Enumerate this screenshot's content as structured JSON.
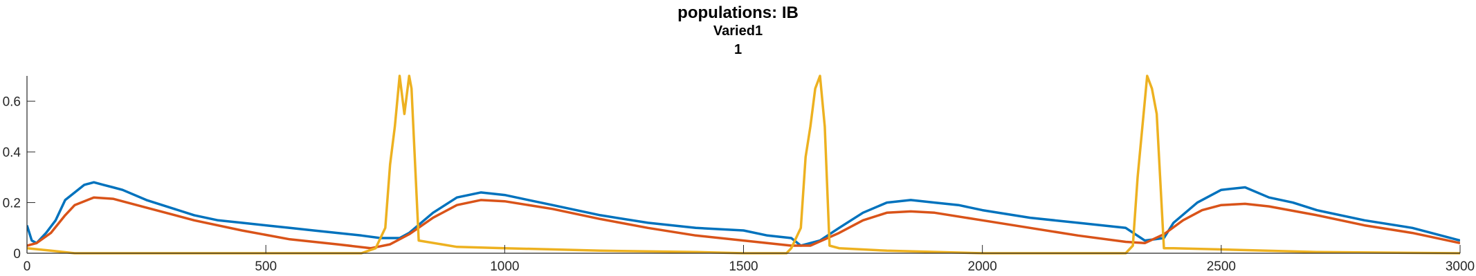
{
  "titles": {
    "line1": "populations: IB",
    "line2": "Varied1",
    "line3": "1"
  },
  "chart_data": {
    "type": "line",
    "title": "populations: IB",
    "subtitle": [
      "Varied1",
      "1"
    ],
    "xlabel": "",
    "ylabel": "",
    "xlim": [
      0,
      3000
    ],
    "ylim": [
      0,
      0.7
    ],
    "grid": false,
    "x_ticks": [
      0,
      500,
      1000,
      1500,
      2000,
      2500,
      3000
    ],
    "x_tick_labels": [
      "0",
      "500",
      "1000",
      "1500",
      "2000",
      "2500",
      "3000"
    ],
    "y_ticks": [
      0,
      0.2,
      0.4,
      0.6
    ],
    "y_tick_labels": [
      "0",
      "0.2",
      "0.4",
      "0.6"
    ],
    "series": [
      {
        "color": "#0072BD",
        "x": [
          0,
          10,
          20,
          40,
          60,
          80,
          100,
          120,
          140,
          160,
          180,
          200,
          250,
          300,
          350,
          400,
          450,
          500,
          550,
          600,
          650,
          700,
          740,
          780,
          800,
          850,
          900,
          950,
          1000,
          1050,
          1100,
          1150,
          1200,
          1300,
          1400,
          1500,
          1550,
          1600,
          1620,
          1660,
          1700,
          1750,
          1800,
          1850,
          1900,
          1950,
          2000,
          2100,
          2200,
          2300,
          2340,
          2380,
          2400,
          2450,
          2500,
          2550,
          2600,
          2650,
          2700,
          2800,
          2900,
          3000
        ],
        "y": [
          0.11,
          0.05,
          0.04,
          0.08,
          0.13,
          0.21,
          0.24,
          0.27,
          0.28,
          0.27,
          0.26,
          0.25,
          0.21,
          0.18,
          0.15,
          0.13,
          0.12,
          0.11,
          0.1,
          0.09,
          0.08,
          0.07,
          0.06,
          0.06,
          0.08,
          0.16,
          0.22,
          0.24,
          0.23,
          0.21,
          0.19,
          0.17,
          0.15,
          0.12,
          0.1,
          0.09,
          0.07,
          0.06,
          0.03,
          0.05,
          0.1,
          0.16,
          0.2,
          0.21,
          0.2,
          0.19,
          0.17,
          0.14,
          0.12,
          0.1,
          0.05,
          0.06,
          0.12,
          0.2,
          0.25,
          0.26,
          0.22,
          0.2,
          0.17,
          0.13,
          0.1,
          0.05
        ]
      },
      {
        "color": "#D95319",
        "x": [
          0,
          20,
          50,
          80,
          100,
          140,
          180,
          250,
          350,
          450,
          550,
          650,
          720,
          760,
          800,
          850,
          900,
          950,
          1000,
          1100,
          1200,
          1300,
          1400,
          1500,
          1600,
          1640,
          1700,
          1750,
          1800,
          1850,
          1900,
          2000,
          2100,
          2200,
          2300,
          2340,
          2380,
          2420,
          2460,
          2500,
          2550,
          2600,
          2700,
          2800,
          2900,
          3000
        ],
        "y": [
          0.03,
          0.04,
          0.08,
          0.15,
          0.19,
          0.22,
          0.215,
          0.18,
          0.13,
          0.09,
          0.055,
          0.035,
          0.02,
          0.035,
          0.075,
          0.14,
          0.19,
          0.21,
          0.205,
          0.175,
          0.135,
          0.1,
          0.07,
          0.05,
          0.03,
          0.03,
          0.08,
          0.13,
          0.16,
          0.165,
          0.16,
          0.13,
          0.1,
          0.07,
          0.045,
          0.04,
          0.075,
          0.13,
          0.17,
          0.19,
          0.195,
          0.185,
          0.15,
          0.11,
          0.08,
          0.04
        ]
      },
      {
        "color": "#EDB120",
        "x": [
          0,
          50,
          100,
          650,
          700,
          730,
          750,
          760,
          770,
          780,
          790,
          800,
          805,
          820,
          900,
          1000,
          1200,
          1400,
          1500,
          1550,
          1590,
          1600,
          1620,
          1630,
          1640,
          1650,
          1660,
          1670,
          1680,
          1700,
          1800,
          2000,
          2200,
          2300,
          2315,
          2325,
          2335,
          2345,
          2355,
          2365,
          2380,
          2400,
          2500,
          2700,
          3000
        ],
        "y": [
          0.02,
          0.01,
          0.0,
          0.0,
          0.0,
          0.02,
          0.1,
          0.35,
          0.5,
          0.7,
          0.55,
          0.7,
          0.65,
          0.05,
          0.025,
          0.02,
          0.01,
          0.005,
          0.0,
          0.0,
          0.0,
          0.02,
          0.1,
          0.38,
          0.5,
          0.65,
          0.7,
          0.5,
          0.03,
          0.02,
          0.01,
          0.0,
          0.0,
          0.0,
          0.03,
          0.3,
          0.5,
          0.7,
          0.65,
          0.55,
          0.02,
          0.02,
          0.015,
          0.005,
          0.0
        ]
      }
    ]
  }
}
